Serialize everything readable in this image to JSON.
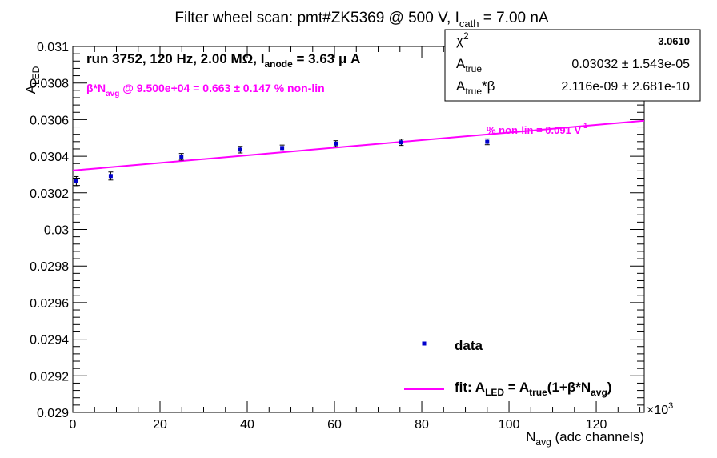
{
  "chart_data": {
    "type": "scatter",
    "title": "Filter wheel scan: pmt#ZK5369 @   500 V, I_cath = 7.00 nA",
    "title_parts": {
      "main": "Filter wheel scan: pmt#ZK5369 @   500 V, I",
      "sub": "cath",
      "tail": " = 7.00 nA"
    },
    "xlabel": {
      "main": "N",
      "sub": "avg",
      "tail": " (adc channels)"
    },
    "ylabel": {
      "main": "A",
      "sub": "LED"
    },
    "x_multiplier_label": "×10",
    "x_multiplier_exp": "3",
    "xlim": [
      0,
      131
    ],
    "ylim": [
      0.029,
      0.031
    ],
    "x_ticks": [
      0,
      20,
      40,
      60,
      80,
      100,
      120
    ],
    "x_tick_labels": [
      "0",
      "20",
      "40",
      "60",
      "80",
      "100",
      "120"
    ],
    "y_ticks": [
      0.029,
      0.0292,
      0.0294,
      0.0296,
      0.0298,
      0.03,
      0.0302,
      0.0304,
      0.0306,
      0.0308,
      0.031
    ],
    "y_tick_labels": [
      "0.029",
      "0.0292",
      "0.0294",
      "0.0296",
      "0.0298",
      "0.03",
      "0.0302",
      "0.0304",
      "0.0306",
      "0.0308",
      "0.031"
    ],
    "series": [
      {
        "name": "data",
        "color": "#0000cc",
        "points": [
          {
            "x": 0.8,
            "y": 0.030264,
            "err": 2.5e-05
          },
          {
            "x": 8.7,
            "y": 0.030292,
            "err": 2.2e-05
          },
          {
            "x": 24.9,
            "y": 0.030397,
            "err": 1.8e-05
          },
          {
            "x": 38.4,
            "y": 0.030436,
            "err": 1.8e-05
          },
          {
            "x": 48.0,
            "y": 0.030445,
            "err": 1.6e-05
          },
          {
            "x": 60.3,
            "y": 0.030469,
            "err": 1.6e-05
          },
          {
            "x": 75.3,
            "y": 0.030476,
            "err": 1.7e-05
          },
          {
            "x": 95.0,
            "y": 0.030479,
            "err": 1.6e-05
          }
        ]
      },
      {
        "name": "fit",
        "color": "#ff00ff",
        "type": "line",
        "points": [
          {
            "x": 0,
            "y": 0.030322
          },
          {
            "x": 131,
            "y": 0.030594
          }
        ]
      }
    ],
    "legend": {
      "placement": "bottom-right",
      "entries": [
        {
          "label": "data",
          "parts": null
        },
        {
          "label": "fit: A_LED = A_true(1+β*N_avg)",
          "parts": [
            {
              "t": "fit: A"
            },
            {
              "t": "LED",
              "sub": true
            },
            {
              "t": " = A"
            },
            {
              "t": "true",
              "sub": true
            },
            {
              "t": "(1+β*N"
            },
            {
              "t": "avg",
              "sub": true
            },
            {
              "t": ")"
            }
          ]
        }
      ]
    },
    "annotations": {
      "run": {
        "parts": [
          {
            "t": "run 3752, 120 Hz, 2.00 MΩ, I"
          },
          {
            "t": "anode",
            "sub": true
          },
          {
            "t": " = 3.63 μ A"
          }
        ]
      },
      "nonlin": {
        "parts": [
          {
            "t": "β*N"
          },
          {
            "t": "avg",
            "sub": true
          },
          {
            "t": " @ 9.500e+04 = 0.663 ± 0.147 % non-lin"
          }
        ]
      },
      "fit_nonlin": {
        "parts": [
          {
            "t": "% non-lin = 0.091 V"
          },
          {
            "t": "-1",
            "sup": true
          }
        ]
      }
    },
    "stats_box": {
      "rows": [
        {
          "label_main": "χ",
          "label_sup": "2",
          "label_sub": "",
          "label_tail": "",
          "value": "3.0610"
        },
        {
          "label_main": "A",
          "label_sup": "",
          "label_sub": "true",
          "label_tail": "",
          "value": "0.03032 ± 1.543e-05"
        },
        {
          "label_main": "A",
          "label_sup": "",
          "label_sub": "true",
          "label_tail": "*β",
          "value": "2.116e-09 ± 2.681e-10"
        }
      ]
    }
  }
}
